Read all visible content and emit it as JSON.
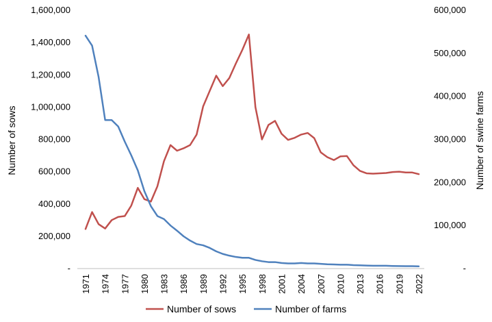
{
  "chart_data": {
    "type": "line",
    "title": "",
    "xlabel": "",
    "ylabel": "Number of sows",
    "y2label": "Number of swine farms",
    "ylim": [
      0,
      1600000
    ],
    "y2lim": [
      0,
      600000
    ],
    "y_ticks": [
      "-",
      "200,000",
      "400,000",
      "600,000",
      "800,000",
      "1,000,000",
      "1,200,000",
      "1,400,000",
      "1,600,000"
    ],
    "y2_ticks": [
      "-",
      "100,000",
      "200,000",
      "300,000",
      "400,000",
      "500,000",
      "600,000"
    ],
    "x": [
      1971,
      1972,
      1973,
      1974,
      1975,
      1976,
      1977,
      1978,
      1979,
      1980,
      1981,
      1982,
      1983,
      1984,
      1985,
      1986,
      1987,
      1988,
      1989,
      1990,
      1991,
      1992,
      1993,
      1994,
      1995,
      1996,
      1997,
      1998,
      1999,
      2000,
      2001,
      2002,
      2003,
      2004,
      2005,
      2006,
      2007,
      2008,
      2009,
      2010,
      2011,
      2012,
      2013,
      2014,
      2015,
      2016,
      2017,
      2018,
      2019,
      2020,
      2021,
      2022
    ],
    "x_tick_labels": [
      "1971",
      "1974",
      "1977",
      "1980",
      "1983",
      "1986",
      "1989",
      "1992",
      "1995",
      "1998",
      "2001",
      "2004",
      "2007",
      "2010",
      "2013",
      "2016",
      "2019",
      "2022"
    ],
    "grid": false,
    "legend_position": "bottom",
    "series": [
      {
        "name": "Number of sows",
        "axis": "left",
        "color": "#c0504d",
        "values": [
          245000,
          350000,
          275000,
          248000,
          300000,
          320000,
          325000,
          390000,
          500000,
          430000,
          415000,
          510000,
          665000,
          765000,
          730000,
          745000,
          765000,
          830000,
          1005000,
          1100000,
          1195000,
          1130000,
          1180000,
          1270000,
          1355000,
          1450000,
          1000000,
          800000,
          890000,
          915000,
          835000,
          797000,
          810000,
          830000,
          840000,
          808000,
          720000,
          690000,
          672000,
          695000,
          697000,
          640000,
          605000,
          590000,
          588000,
          590000,
          592000,
          598000,
          600000,
          595000,
          595000,
          585000
        ]
      },
      {
        "name": "Number of farms",
        "axis": "right",
        "color": "#4f81bd",
        "values": [
          541000,
          518000,
          445000,
          345000,
          345000,
          330000,
          295000,
          263000,
          228000,
          180000,
          145000,
          122000,
          115000,
          100000,
          88000,
          75000,
          65000,
          57000,
          54000,
          48000,
          40000,
          34000,
          30000,
          27000,
          25000,
          25000,
          20000,
          17000,
          15000,
          15000,
          13000,
          12000,
          12000,
          13000,
          12000,
          12000,
          11000,
          10000,
          9500,
          9000,
          9000,
          8000,
          7500,
          7000,
          6500,
          6500,
          6500,
          6000,
          5800,
          5500,
          5500,
          5200
        ]
      }
    ]
  }
}
